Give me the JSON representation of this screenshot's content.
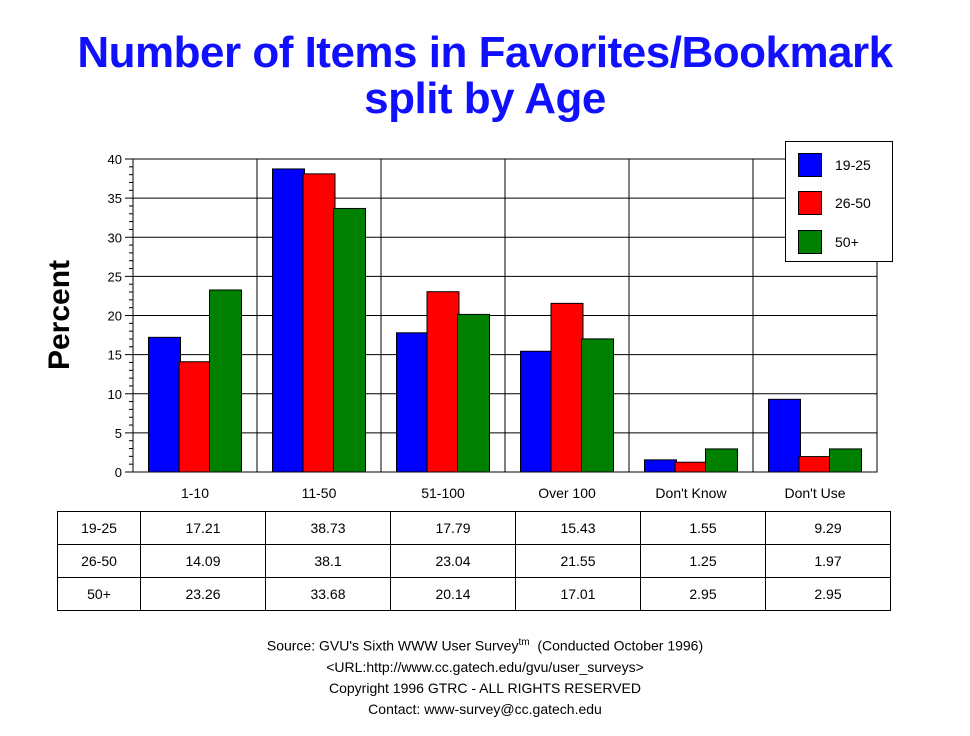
{
  "title": {
    "line1": "Number of Items in Favorites/Bookmark",
    "line2": "split by Age"
  },
  "chart_data": {
    "type": "bar",
    "title": "Number of Items in Favorites/Bookmark split by Age",
    "xlabel": "",
    "ylabel": "Percent",
    "ylim": [
      0,
      40
    ],
    "yticks": [
      0,
      5,
      10,
      15,
      20,
      25,
      30,
      35,
      40
    ],
    "categories": [
      "1-10",
      "11-50",
      "51-100",
      "Over 100",
      "Don't Know",
      "Don't Use"
    ],
    "series": [
      {
        "name": "19-25",
        "color": "#0000ff",
        "values": [
          17.21,
          38.73,
          17.79,
          15.43,
          1.55,
          9.29
        ]
      },
      {
        "name": "26-50",
        "color": "#ff0000",
        "values": [
          14.09,
          38.1,
          23.04,
          21.55,
          1.25,
          1.97
        ]
      },
      {
        "name": "50+",
        "color": "#008000",
        "values": [
          23.26,
          33.68,
          20.14,
          17.01,
          2.95,
          2.95
        ]
      }
    ],
    "legend_position": "top-right",
    "grid": true
  },
  "table": {
    "rows": [
      {
        "label": "19-25",
        "cells": [
          "17.21",
          "38.73",
          "17.79",
          "15.43",
          "1.55",
          "9.29"
        ]
      },
      {
        "label": "26-50",
        "cells": [
          "14.09",
          "38.1",
          "23.04",
          "21.55",
          "1.25",
          "1.97"
        ]
      },
      {
        "label": "50+",
        "cells": [
          "23.26",
          "33.68",
          "20.14",
          "17.01",
          "2.95",
          "2.95"
        ]
      }
    ]
  },
  "source": {
    "line1_prefix": "Source: GVU's Sixth WWW User Survey",
    "line1_sup": "tm",
    "line1_suffix": "  (Conducted October 1996)",
    "line2": "<URL:http://www.cc.gatech.edu/gvu/user_surveys>",
    "line3": "Copyright 1996 GTRC -  ALL RIGHTS RESERVED",
    "line4": "Contact: www-survey@cc.gatech.edu"
  }
}
